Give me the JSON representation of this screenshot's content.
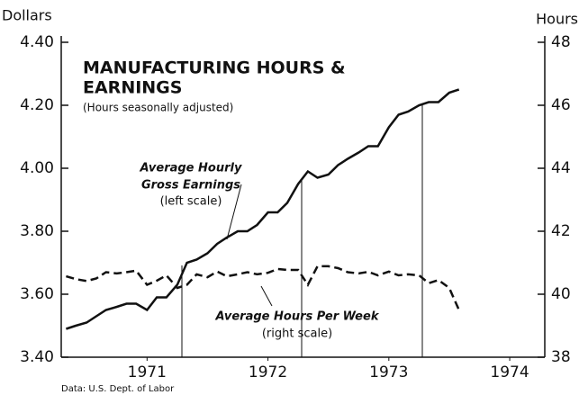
{
  "chart_data": {
    "type": "line",
    "title": [
      "MANUFACTURING HOURS &",
      "EARNINGS"
    ],
    "subtitle": "(Hours seasonally adjusted)",
    "y_label": "Dollars",
    "y2_label": "Hours",
    "source": "Data:  U.S. Dept. of Labor",
    "annotations": [
      "Average Hourly",
      "Gross Earnings",
      "(left scale)",
      "Average Hours Per Week",
      "(right scale)"
    ],
    "x": [
      1970.33,
      1970.41,
      1970.5,
      1970.58,
      1970.66,
      1970.75,
      1970.83,
      1970.91,
      1971.0,
      1971.08,
      1971.16,
      1971.25,
      1971.33,
      1971.41,
      1971.5,
      1971.58,
      1971.66,
      1971.75,
      1971.83,
      1971.91,
      1972.0,
      1972.08,
      1972.16,
      1972.25,
      1972.33,
      1972.41,
      1972.5,
      1972.58,
      1972.66,
      1972.75,
      1972.83,
      1972.91,
      1973.0,
      1973.08,
      1973.16,
      1973.25,
      1973.33,
      1973.41,
      1973.5,
      1973.58
    ],
    "series": [
      {
        "color": "#111111",
        "dash": false,
        "axis": "y",
        "values": [
          3.49,
          3.5,
          3.51,
          3.53,
          3.55,
          3.56,
          3.57,
          3.57,
          3.55,
          3.59,
          3.59,
          3.63,
          3.7,
          3.71,
          3.73,
          3.76,
          3.78,
          3.8,
          3.8,
          3.82,
          3.86,
          3.86,
          3.89,
          3.95,
          3.99,
          3.97,
          3.98,
          4.01,
          4.03,
          4.05,
          4.07,
          4.07,
          4.13,
          4.17,
          4.18,
          4.2,
          4.21,
          4.21,
          4.24,
          4.25
        ]
      },
      {
        "color": "#111111",
        "dash": true,
        "axis": "y2",
        "values": [
          40.57,
          40.48,
          40.42,
          40.5,
          40.7,
          40.66,
          40.7,
          40.75,
          40.3,
          40.43,
          40.6,
          40.2,
          40.3,
          40.63,
          40.54,
          40.72,
          40.57,
          40.63,
          40.7,
          40.63,
          40.68,
          40.8,
          40.77,
          40.77,
          40.3,
          40.89,
          40.89,
          40.83,
          40.7,
          40.66,
          40.71,
          40.6,
          40.72,
          40.6,
          40.63,
          40.6,
          40.35,
          40.45,
          40.2,
          39.5
        ]
      }
    ],
    "xlim": [
      1970.29,
      1974.29
    ],
    "xticks": [
      1971,
      1972,
      1973,
      1974
    ],
    "ylim": [
      3.4,
      4.4
    ],
    "yticks": [
      {
        "value": 3.4,
        "label": "3.40"
      },
      {
        "value": 3.6,
        "label": "3.60"
      },
      {
        "value": 3.8,
        "label": "3.80"
      },
      {
        "value": 4.0,
        "label": "4.00"
      },
      {
        "value": 4.2,
        "label": "4.20"
      },
      {
        "value": 4.4,
        "label": "4.40"
      }
    ],
    "y2lim": [
      38,
      48
    ],
    "y2ticks": [
      38,
      40,
      42,
      44,
      46,
      48
    ]
  }
}
